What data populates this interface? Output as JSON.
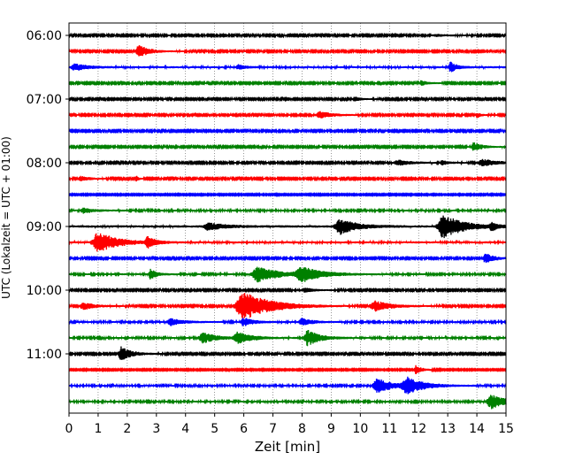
{
  "chart_data": {
    "type": "line",
    "title": "",
    "xlabel": "Zeit  [min]",
    "ylabel": "UTC (Lokalzeit = UTC + 01:00)",
    "xlim": [
      0,
      15
    ],
    "x_ticks": [
      0,
      1,
      2,
      3,
      4,
      5,
      6,
      7,
      8,
      9,
      10,
      11,
      12,
      13,
      14,
      15
    ],
    "y_tick_labels": [
      "06:00",
      "07:00",
      "08:00",
      "09:00",
      "10:00",
      "11:00"
    ],
    "vertical_grid": "dotted",
    "trace_interval_minutes": 15,
    "start_time": "06:00",
    "color_cycle": [
      "#000000",
      "#ff0000",
      "#0000ff",
      "#008000"
    ],
    "series": [
      {
        "start": "06:00",
        "color": "#000000",
        "noise": 0.6,
        "events": [
          {
            "t": 12.6,
            "amp": 1.2,
            "dur": 0.6
          }
        ]
      },
      {
        "start": "06:15",
        "color": "#ff0000",
        "noise": 0.6,
        "events": [
          {
            "t": 2.4,
            "amp": 7,
            "dur": 0.5
          }
        ]
      },
      {
        "start": "06:30",
        "color": "#0000ff",
        "noise": 0.8,
        "events": [
          {
            "t": 0.2,
            "amp": 4,
            "dur": 0.6
          },
          {
            "t": 5.8,
            "amp": 3,
            "dur": 0.3
          },
          {
            "t": 13.1,
            "amp": 6,
            "dur": 0.3
          }
        ]
      },
      {
        "start": "06:45",
        "color": "#008000",
        "noise": 0.6,
        "events": [
          {
            "t": 12.1,
            "amp": 3,
            "dur": 0.3
          }
        ]
      },
      {
        "start": "07:00",
        "color": "#000000",
        "noise": 0.6,
        "events": [
          {
            "t": 9.8,
            "amp": 2.5,
            "dur": 0.3
          }
        ]
      },
      {
        "start": "07:15",
        "color": "#ff0000",
        "noise": 0.6,
        "events": [
          {
            "t": 8.6,
            "amp": 4,
            "dur": 0.6
          },
          {
            "t": 14.0,
            "amp": 3,
            "dur": 0.2
          }
        ]
      },
      {
        "start": "07:30",
        "color": "#0000ff",
        "noise": 0.6,
        "events": []
      },
      {
        "start": "07:45",
        "color": "#008000",
        "noise": 0.6,
        "events": [
          {
            "t": 13.9,
            "amp": 5,
            "dur": 0.4
          }
        ]
      },
      {
        "start": "08:00",
        "color": "#000000",
        "noise": 0.6,
        "events": [
          {
            "t": 11.3,
            "amp": 3,
            "dur": 0.7
          },
          {
            "t": 12.8,
            "amp": 2.5,
            "dur": 0.3
          },
          {
            "t": 14.2,
            "amp": 4,
            "dur": 0.8
          }
        ]
      },
      {
        "start": "08:15",
        "color": "#ff0000",
        "noise": 0.6,
        "events": [
          {
            "t": 0.4,
            "amp": 3,
            "dur": 0.4
          },
          {
            "t": 2.3,
            "amp": 4,
            "dur": 0.1
          }
        ]
      },
      {
        "start": "08:30",
        "color": "#0000ff",
        "noise": 0.5,
        "events": []
      },
      {
        "start": "08:45",
        "color": "#008000",
        "noise": 0.7,
        "events": [
          {
            "t": 0.5,
            "amp": 3,
            "dur": 0.5
          }
        ]
      },
      {
        "start": "09:00",
        "color": "#000000",
        "noise": 0.9,
        "events": [
          {
            "t": 4.8,
            "amp": 4,
            "dur": 0.8
          },
          {
            "t": 9.3,
            "amp": 9,
            "dur": 0.8
          },
          {
            "t": 12.85,
            "amp": 14,
            "dur": 0.9
          },
          {
            "t": 14.5,
            "amp": 4,
            "dur": 0.3
          }
        ]
      },
      {
        "start": "09:15",
        "color": "#ff0000",
        "noise": 0.8,
        "events": [
          {
            "t": 1.0,
            "amp": 12,
            "dur": 0.9
          },
          {
            "t": 2.7,
            "amp": 6,
            "dur": 0.4
          }
        ]
      },
      {
        "start": "09:30",
        "color": "#0000ff",
        "noise": 0.6,
        "events": [
          {
            "t": 14.3,
            "amp": 6,
            "dur": 0.4
          }
        ]
      },
      {
        "start": "09:45",
        "color": "#008000",
        "noise": 0.7,
        "events": [
          {
            "t": 2.8,
            "amp": 6,
            "dur": 0.3
          },
          {
            "t": 6.5,
            "amp": 9,
            "dur": 1.0
          },
          {
            "t": 8.0,
            "amp": 8,
            "dur": 1.0
          }
        ]
      },
      {
        "start": "10:00",
        "color": "#000000",
        "noise": 0.6,
        "events": [
          {
            "t": 8.1,
            "amp": 2.5,
            "dur": 0.5
          }
        ]
      },
      {
        "start": "10:15",
        "color": "#ff0000",
        "noise": 0.6,
        "events": [
          {
            "t": 0.5,
            "amp": 4,
            "dur": 0.6
          },
          {
            "t": 6.0,
            "amp": 16,
            "dur": 1.3
          },
          {
            "t": 10.5,
            "amp": 6,
            "dur": 0.8
          }
        ]
      },
      {
        "start": "10:30",
        "color": "#0000ff",
        "noise": 0.7,
        "events": [
          {
            "t": 3.5,
            "amp": 4,
            "dur": 0.6
          },
          {
            "t": 6.0,
            "amp": 5,
            "dur": 0.5
          },
          {
            "t": 8.0,
            "amp": 4,
            "dur": 0.5
          }
        ]
      },
      {
        "start": "10:45",
        "color": "#008000",
        "noise": 0.7,
        "events": [
          {
            "t": 4.6,
            "amp": 6,
            "dur": 0.7
          },
          {
            "t": 5.8,
            "amp": 6,
            "dur": 0.7
          },
          {
            "t": 8.2,
            "amp": 9,
            "dur": 0.6
          }
        ]
      },
      {
        "start": "11:00",
        "color": "#000000",
        "noise": 0.6,
        "events": [
          {
            "t": 1.8,
            "amp": 8,
            "dur": 0.5
          }
        ]
      },
      {
        "start": "11:15",
        "color": "#ff0000",
        "noise": 0.5,
        "events": [
          {
            "t": 11.9,
            "amp": 5,
            "dur": 0.3
          }
        ]
      },
      {
        "start": "11:30",
        "color": "#0000ff",
        "noise": 0.7,
        "events": [
          {
            "t": 10.6,
            "amp": 8,
            "dur": 0.8
          },
          {
            "t": 11.6,
            "amp": 9,
            "dur": 0.8
          }
        ]
      },
      {
        "start": "11:45",
        "color": "#008000",
        "noise": 0.7,
        "events": [
          {
            "t": 14.5,
            "amp": 8,
            "dur": 0.7
          }
        ]
      }
    ]
  }
}
